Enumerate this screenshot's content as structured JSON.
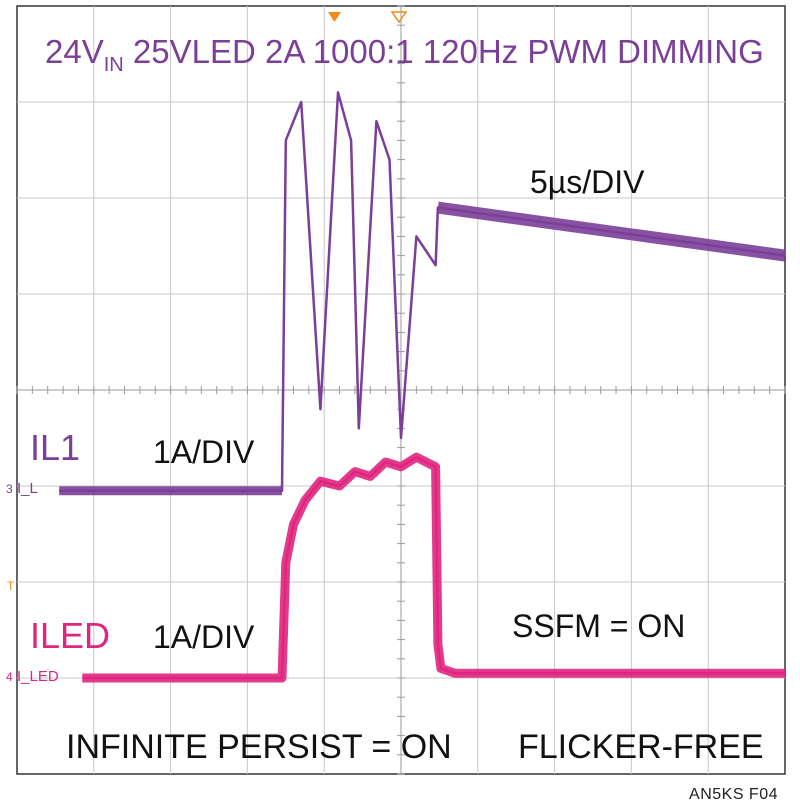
{
  "chart_data": {
    "type": "line",
    "title_main": "24V",
    "title_sub": "IN",
    "title_rest": " 25VLED 2A 1000:1 120Hz PWM DIMMING",
    "timebase": "5µs/DIV",
    "grid": true,
    "divisions": {
      "x": 10,
      "y": 8
    },
    "series": [
      {
        "name": "IL1",
        "scale": "1A/DIV",
        "marker_label": "I_L",
        "marker_number": "3",
        "color": "#7b3f98",
        "x_div": [
          0.55,
          3.45,
          3.5,
          3.7,
          3.95,
          4.18,
          4.35,
          4.45,
          4.68,
          4.85,
          5.0,
          5.2,
          5.45,
          5.48,
          10.0
        ],
        "y_div": [
          2.95,
          2.95,
          6.6,
          7.0,
          3.8,
          7.1,
          6.6,
          3.6,
          6.8,
          6.4,
          3.5,
          5.6,
          5.3,
          5.9,
          5.4
        ]
      },
      {
        "name": "ILED",
        "scale": "1A/DIV",
        "marker_label": "I_LED",
        "marker_number": "4",
        "color": "#e0257f",
        "x_div": [
          0.85,
          3.45,
          3.5,
          3.6,
          3.75,
          3.95,
          4.2,
          4.4,
          4.6,
          4.8,
          5.0,
          5.2,
          5.45,
          5.48,
          5.52,
          5.7,
          6.0,
          10.0
        ],
        "y_div": [
          1.0,
          1.0,
          2.2,
          2.6,
          2.85,
          3.05,
          3.0,
          3.15,
          3.1,
          3.25,
          3.2,
          3.3,
          3.2,
          1.35,
          1.1,
          1.05,
          1.05,
          1.05
        ]
      }
    ],
    "annotations": {
      "ssfm": "SSFM = ON",
      "persist": "INFINITE PERSIST = ON",
      "flicker": "FLICKER-FREE",
      "trigger_mark": "T"
    },
    "colors": {
      "title": "#7b3f98",
      "grid": "#c8c8c8",
      "axis_center": "#9a9a9a",
      "trigger": "#f08c1e"
    }
  },
  "figure_id": "AN5KS F04"
}
